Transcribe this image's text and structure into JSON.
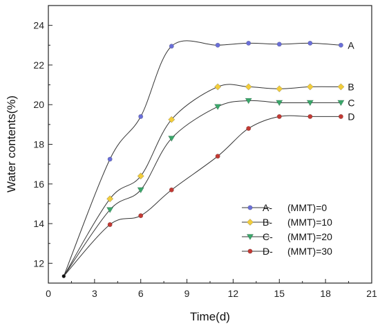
{
  "chart_data": {
    "type": "line",
    "title": "",
    "xlabel": "Time(d)",
    "ylabel": "Water contents(%)",
    "xlim": [
      0,
      21
    ],
    "ylim": [
      11,
      25
    ],
    "xticks": [
      "0",
      "3",
      "6",
      "9",
      "12",
      "15",
      "18",
      "21"
    ],
    "yticks": [
      "12",
      "14",
      "16",
      "18",
      "20",
      "22",
      "24"
    ],
    "origin_point": {
      "x": 1,
      "y": 11.35
    },
    "legend_position": "bottom-right",
    "grid": false,
    "series": [
      {
        "id": "A",
        "end_label": "A",
        "legend_name": "A-",
        "legend_value": "(MMT)=0",
        "marker": "circle",
        "color": "#6a6fd8",
        "x": [
          1,
          4,
          6,
          8,
          11,
          13,
          15,
          17,
          19
        ],
        "y": [
          11.35,
          17.25,
          19.4,
          22.95,
          23.0,
          23.1,
          23.05,
          23.1,
          23.0
        ]
      },
      {
        "id": "B",
        "end_label": "B",
        "legend_name": "B-",
        "legend_value": "(MMT)=10",
        "marker": "diamond",
        "color": "#f2cd3b",
        "x": [
          1,
          4,
          6,
          8,
          11,
          13,
          15,
          17,
          19
        ],
        "y": [
          11.35,
          15.25,
          16.4,
          19.25,
          20.9,
          20.9,
          20.8,
          20.9,
          20.9
        ]
      },
      {
        "id": "C",
        "end_label": "C",
        "legend_name": "C-",
        "legend_value": "(MMT)=20",
        "marker": "triangle-down",
        "color": "#3aa66a",
        "x": [
          1,
          4,
          6,
          8,
          11,
          13,
          15,
          17,
          19
        ],
        "y": [
          11.35,
          14.7,
          15.7,
          18.3,
          19.9,
          20.2,
          20.1,
          20.1,
          20.1
        ]
      },
      {
        "id": "D",
        "end_label": "D",
        "legend_name": "D-",
        "legend_value": "(MMT)=30",
        "marker": "circle",
        "color": "#c23a34",
        "x": [
          1,
          4,
          6,
          8,
          11,
          13,
          15,
          17,
          19
        ],
        "y": [
          11.35,
          13.95,
          14.4,
          15.7,
          17.4,
          18.8,
          19.4,
          19.4,
          19.4
        ]
      }
    ]
  }
}
